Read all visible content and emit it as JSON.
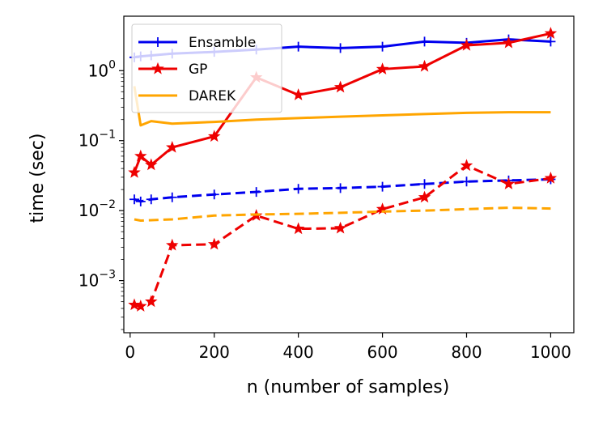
{
  "chart_data": {
    "type": "line",
    "title": "",
    "xlabel": "n (number of samples)",
    "ylabel": "time (sec)",
    "xlim": [
      -15,
      1055
    ],
    "ylim": [
      0.00018,
      6.0
    ],
    "yscale": "log",
    "grid": false,
    "legend_position": "upper-left",
    "x_ticks": [
      0,
      200,
      400,
      600,
      800,
      1000
    ],
    "y_ticks": [
      {
        "value": 0.001,
        "base": "10",
        "exp": "−3"
      },
      {
        "value": 0.01,
        "base": "10",
        "exp": "−2"
      },
      {
        "value": 0.1,
        "base": "10",
        "exp": "−1"
      },
      {
        "value": 1,
        "base": "10",
        "exp": "0"
      }
    ],
    "series": [
      {
        "name": "Ensamble",
        "color": "#0000ee",
        "marker": "plus",
        "linestyle": "solid",
        "x": [
          10,
          25,
          50,
          100,
          200,
          300,
          400,
          500,
          600,
          700,
          800,
          900,
          1000
        ],
        "y": [
          1.55,
          1.6,
          1.65,
          1.75,
          1.85,
          2.0,
          2.2,
          2.1,
          2.2,
          2.6,
          2.5,
          2.8,
          2.6
        ]
      },
      {
        "name": "GP",
        "color": "#ee0000",
        "marker": "star",
        "linestyle": "solid",
        "x": [
          10,
          25,
          50,
          100,
          200,
          300,
          400,
          500,
          600,
          700,
          800,
          900,
          1000
        ],
        "y": [
          0.035,
          0.06,
          0.045,
          0.08,
          0.115,
          0.8,
          0.45,
          0.58,
          1.05,
          1.15,
          2.3,
          2.5,
          3.4
        ]
      },
      {
        "name": "DAREK",
        "color": "#ffa500",
        "marker": "none",
        "linestyle": "solid",
        "x": [
          10,
          25,
          50,
          100,
          200,
          300,
          400,
          500,
          600,
          700,
          800,
          900,
          1000
        ],
        "y": [
          0.6,
          0.165,
          0.19,
          0.175,
          0.185,
          0.2,
          0.21,
          0.22,
          0.23,
          0.24,
          0.25,
          0.255,
          0.255
        ]
      },
      {
        "color": "#0000ee",
        "marker": "plus",
        "linestyle": "dashed",
        "x": [
          10,
          25,
          50,
          100,
          200,
          300,
          400,
          500,
          600,
          700,
          800,
          900,
          1000
        ],
        "y": [
          0.0145,
          0.0135,
          0.0145,
          0.0155,
          0.017,
          0.0185,
          0.0205,
          0.021,
          0.022,
          0.024,
          0.026,
          0.027,
          0.028
        ]
      },
      {
        "color": "#ee0000",
        "marker": "star",
        "linestyle": "dashed",
        "x": [
          10,
          25,
          50,
          100,
          200,
          300,
          400,
          500,
          600,
          700,
          800,
          900,
          1000
        ],
        "y": [
          0.00045,
          0.00043,
          0.0005,
          0.0032,
          0.0033,
          0.0085,
          0.0055,
          0.0056,
          0.0105,
          0.0155,
          0.044,
          0.024,
          0.029
        ]
      },
      {
        "color": "#ffa500",
        "marker": "none",
        "linestyle": "dashed",
        "x": [
          10,
          25,
          50,
          100,
          200,
          300,
          400,
          500,
          600,
          700,
          800,
          900,
          1000
        ],
        "y": [
          0.0075,
          0.0072,
          0.0073,
          0.0075,
          0.0085,
          0.0088,
          0.009,
          0.0093,
          0.0097,
          0.01,
          0.0105,
          0.011,
          0.0107
        ]
      }
    ]
  }
}
